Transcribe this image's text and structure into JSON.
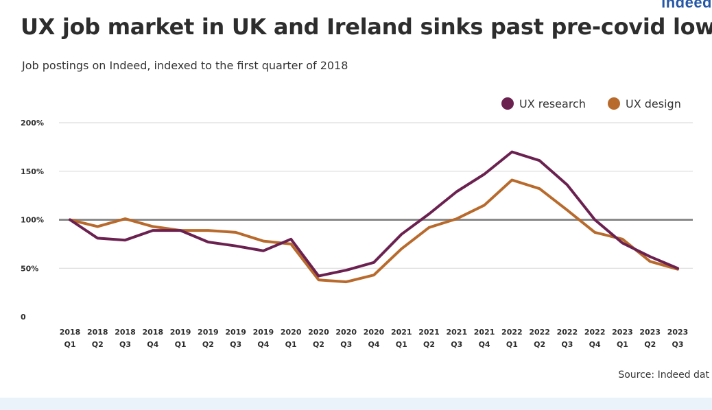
{
  "brand": "indeed",
  "title": "UX job market in UK and Ireland sinks past pre-covid low",
  "subtitle": "Job postings on Indeed, indexed to the first quarter of 2018",
  "source": "Source: Indeed dat",
  "colors": {
    "ux_research": "#6b2150",
    "ux_design": "#b86a2c",
    "grid": "#d6d6d6",
    "baseline": "#8a8a8a",
    "bottom_band": "#eaf2fa"
  },
  "chart_data": {
    "type": "line",
    "title": "UX job market in UK and Ireland sinks past pre-covid low",
    "subtitle": "Job postings on Indeed, indexed to the first quarter of 2018",
    "xlabel": "",
    "ylabel": "",
    "ylim": [
      0,
      200
    ],
    "yticks": [
      {
        "value": 0,
        "label": "0"
      },
      {
        "value": 50,
        "label": "50%"
      },
      {
        "value": 100,
        "label": "100%"
      },
      {
        "value": 150,
        "label": "150%"
      },
      {
        "value": 200,
        "label": "200%"
      }
    ],
    "reference_line": 100,
    "grid": true,
    "legend_position": "top-right",
    "categories": [
      {
        "year": "2018",
        "quarter": "Q1"
      },
      {
        "year": "2018",
        "quarter": "Q2"
      },
      {
        "year": "2018",
        "quarter": "Q3"
      },
      {
        "year": "2018",
        "quarter": "Q4"
      },
      {
        "year": "2019",
        "quarter": "Q1"
      },
      {
        "year": "2019",
        "quarter": "Q2"
      },
      {
        "year": "2019",
        "quarter": "Q3"
      },
      {
        "year": "2019",
        "quarter": "Q4"
      },
      {
        "year": "2020",
        "quarter": "Q1"
      },
      {
        "year": "2020",
        "quarter": "Q2"
      },
      {
        "year": "2020",
        "quarter": "Q3"
      },
      {
        "year": "2020",
        "quarter": "Q4"
      },
      {
        "year": "2021",
        "quarter": "Q1"
      },
      {
        "year": "2021",
        "quarter": "Q2"
      },
      {
        "year": "2021",
        "quarter": "Q3"
      },
      {
        "year": "2021",
        "quarter": "Q4"
      },
      {
        "year": "2022",
        "quarter": "Q1"
      },
      {
        "year": "2022",
        "quarter": "Q2"
      },
      {
        "year": "2022",
        "quarter": "Q3"
      },
      {
        "year": "2022",
        "quarter": "Q4"
      },
      {
        "year": "2023",
        "quarter": "Q1"
      },
      {
        "year": "2023",
        "quarter": "Q2"
      },
      {
        "year": "2023",
        "quarter": "Q3"
      }
    ],
    "series": [
      {
        "name": "UX research",
        "color": "#6b2150",
        "values": [
          100,
          81,
          79,
          89,
          89,
          77,
          73,
          68,
          80,
          42,
          48,
          56,
          85,
          106,
          129,
          147,
          170,
          161,
          136,
          100,
          76,
          62,
          50
        ]
      },
      {
        "name": "UX design",
        "color": "#b86a2c",
        "values": [
          100,
          93,
          101,
          93,
          89,
          89,
          87,
          78,
          75,
          38,
          36,
          43,
          70,
          92,
          101,
          115,
          141,
          132,
          110,
          87,
          80,
          57,
          49
        ]
      }
    ]
  }
}
